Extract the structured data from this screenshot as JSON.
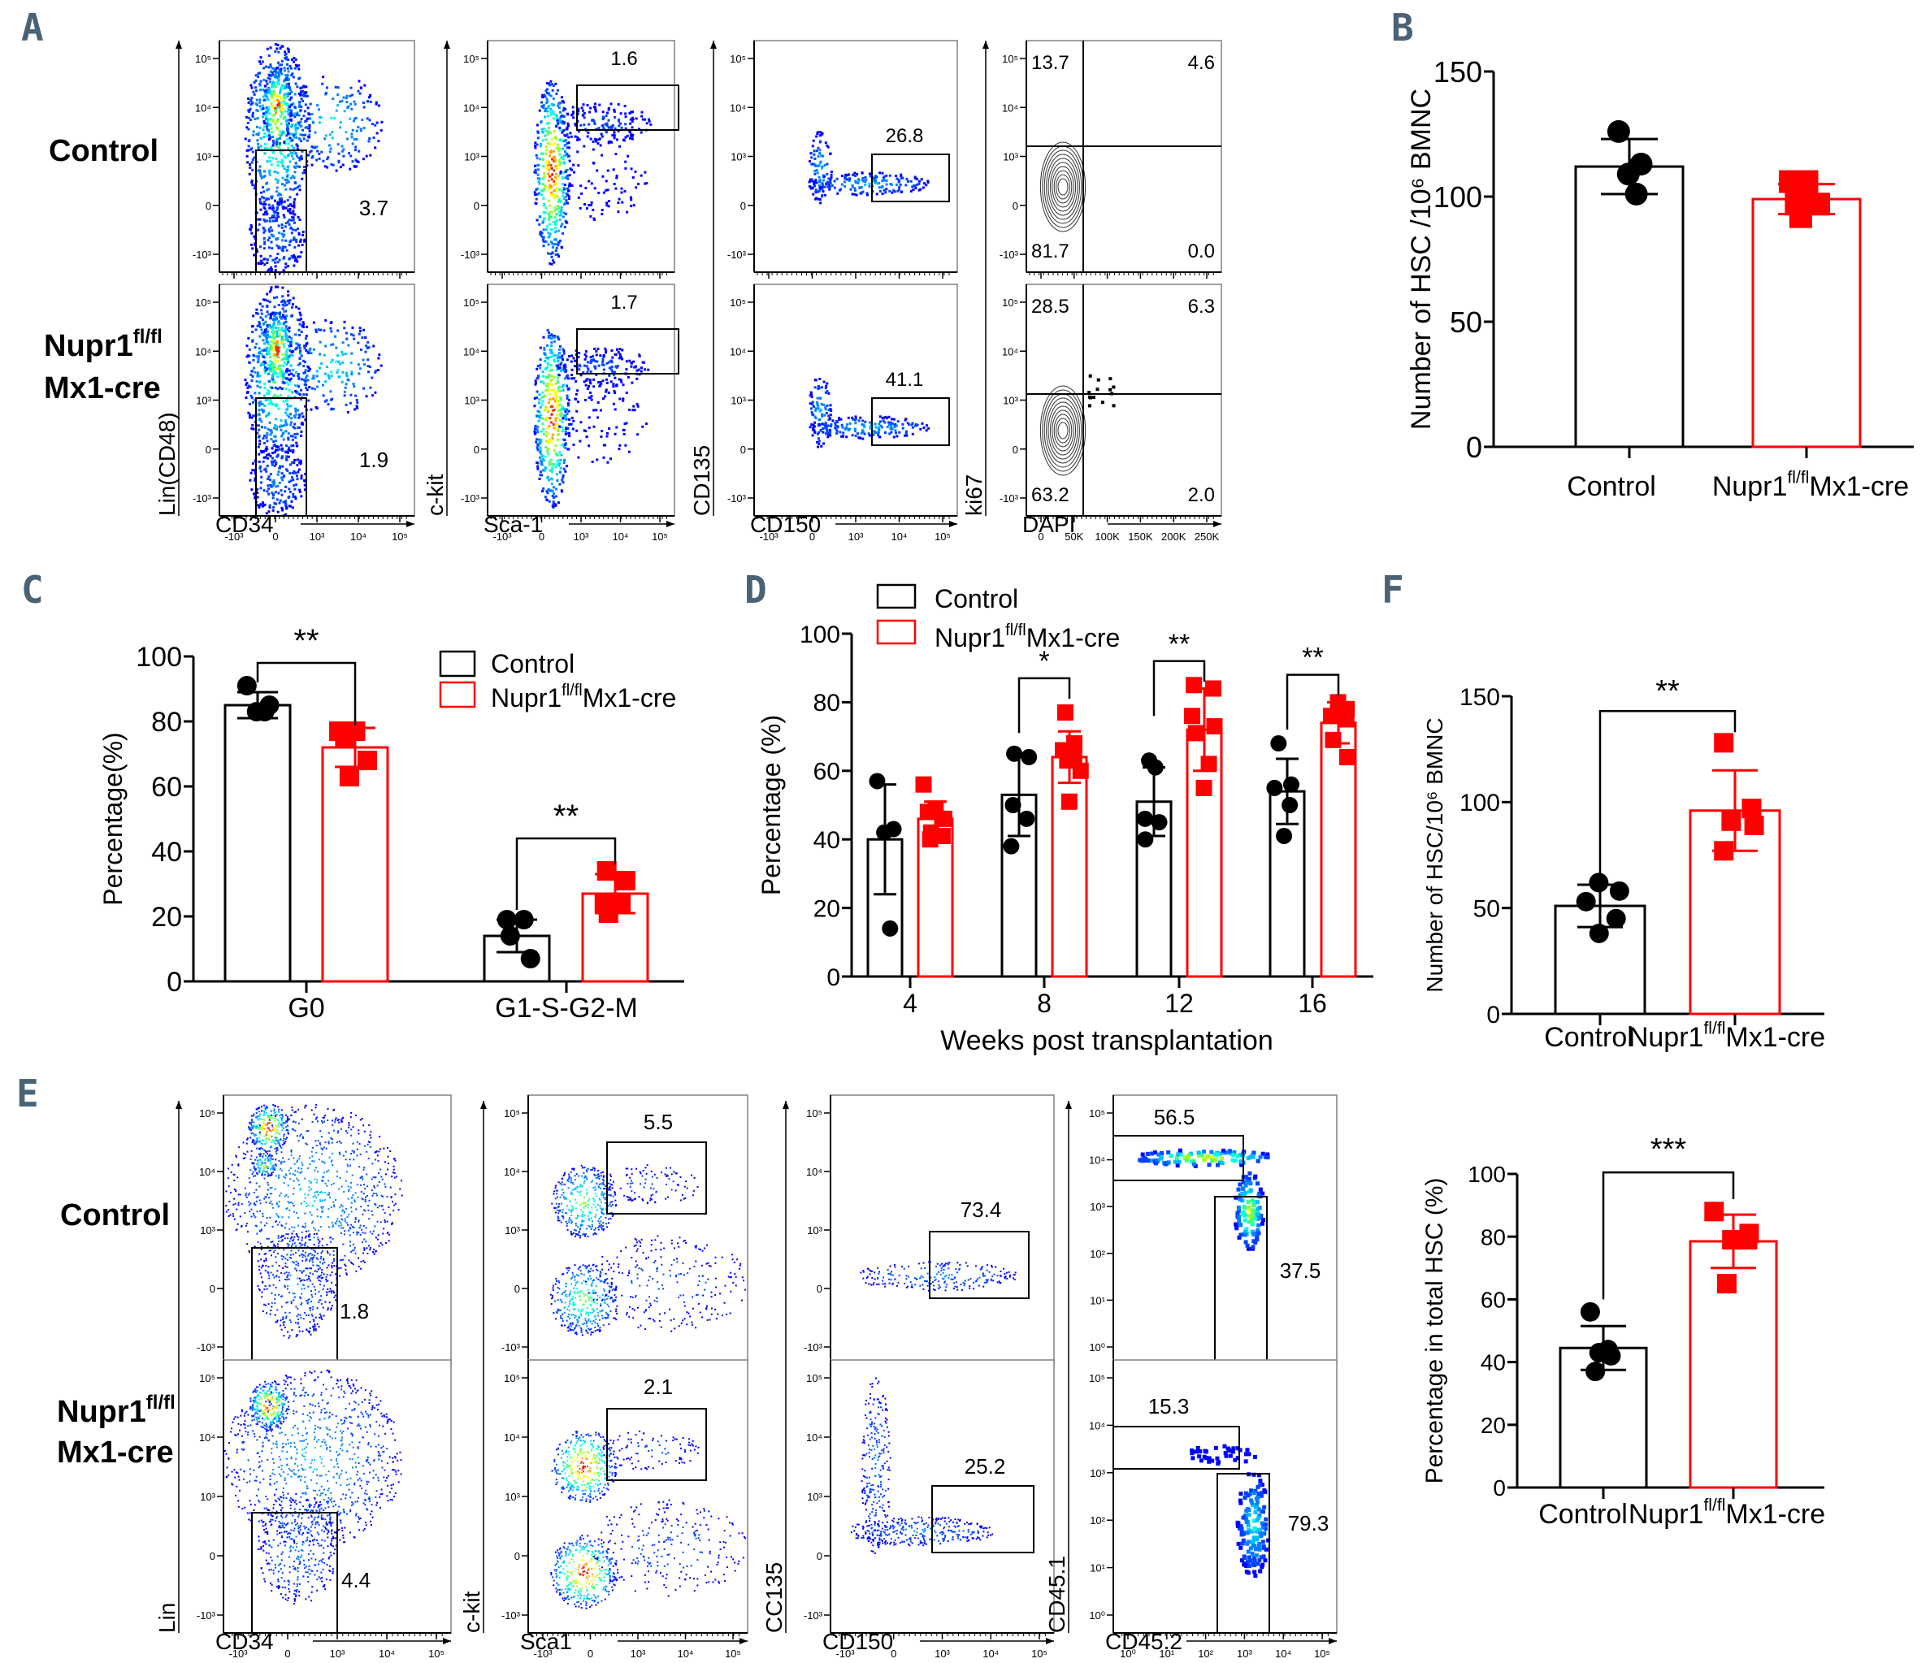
{
  "panel_labels": {
    "A": "A",
    "B": "B",
    "C": "C",
    "D": "D",
    "E": "E",
    "F": "F"
  },
  "groups": {
    "control": "Control",
    "nupr1_base": "Nupr1",
    "nupr1_sup": "fl/fl",
    "nupr1_suffix": "Mx1-cre",
    "nupr1_row_line2": "Mx1-cre"
  },
  "colors": {
    "control": "#000000",
    "nupr1": "#ff0000",
    "panel_label": "#4a6275"
  },
  "flow_A": {
    "plots": [
      {
        "xlabel": "CD34",
        "ylabel": "Lin(CD48)",
        "xticks": [
          "-10³",
          "0",
          "10³",
          "10⁴",
          "10⁵"
        ],
        "yticks": [
          "10⁵",
          "10⁴",
          "10³",
          "0",
          "-10³"
        ],
        "gates": [
          "3.7",
          "1.9"
        ]
      },
      {
        "xlabel": "Sca-1",
        "ylabel": "c-kit",
        "xticks": [
          "-10³",
          "0",
          "10³",
          "10⁴",
          "10⁵"
        ],
        "yticks": [
          "10⁵",
          "10⁴",
          "10³",
          "0",
          "-10³"
        ],
        "gates": [
          "1.6",
          "1.7"
        ]
      },
      {
        "xlabel": "CD150",
        "ylabel": "CD135",
        "xticks": [
          "-10³",
          "0",
          "10³",
          "10⁴",
          "10⁵"
        ],
        "yticks": [
          "10⁵",
          "10⁴",
          "10³",
          "0",
          "-10³"
        ],
        "gates": [
          "26.8",
          "41.1"
        ]
      },
      {
        "xlabel": "DAPI",
        "ylabel": "ki67",
        "xticks": [
          "0",
          "50K",
          "100K",
          "150K",
          "200K",
          "250K"
        ],
        "yticks": [
          "10⁵",
          "10⁴",
          "10³",
          "0",
          "-10³"
        ],
        "quadrants": [
          [
            "13.7",
            "4.6",
            "81.7",
            "0.0"
          ],
          [
            "28.5",
            "6.3",
            "63.2",
            "2.0"
          ]
        ]
      }
    ]
  },
  "flow_E": {
    "plots": [
      {
        "xlabel": "CD34",
        "ylabel": "Lin",
        "xticks": [
          "-10³",
          "0",
          "10³",
          "10⁴",
          "10⁵"
        ],
        "yticks": [
          "10⁵",
          "10⁴",
          "10³",
          "0",
          "-10³"
        ],
        "gates": [
          "1.8",
          "4.4"
        ]
      },
      {
        "xlabel": "Sca1",
        "ylabel": "c-kit",
        "xticks": [
          "-10³",
          "0",
          "10³",
          "10⁴",
          "10⁵"
        ],
        "yticks": [
          "10⁵",
          "10⁴",
          "10³",
          "0",
          "-10³"
        ],
        "gates": [
          "5.5",
          "2.1"
        ]
      },
      {
        "xlabel": "CD150",
        "ylabel": "CC135",
        "xticks": [
          "-10³",
          "0",
          "10³",
          "10⁴",
          "10⁵"
        ],
        "yticks": [
          "10⁵",
          "10⁴",
          "10³",
          "0",
          "-10³"
        ],
        "gates": [
          "73.4",
          "25.2"
        ]
      },
      {
        "xlabel": "CD45.2",
        "ylabel": "CD45.1",
        "xticks": [
          "10⁰",
          "10¹",
          "10²",
          "10³",
          "10⁴",
          "10⁵"
        ],
        "yticks": [
          "10⁵",
          "10⁴",
          "10³",
          "10²",
          "10¹",
          "10⁰"
        ],
        "gates": [
          [
            "56.5",
            "37.5"
          ],
          [
            "15.3",
            "79.3"
          ]
        ]
      }
    ]
  },
  "chart_data": [
    {
      "id": "B",
      "type": "bar",
      "title": "",
      "ylabel": "Number of HSC /10⁶ BMNC",
      "xlabel": "",
      "categories": [
        "Control",
        "Nupr1fl/flMx1-cre"
      ],
      "ylim": [
        0,
        150
      ],
      "yticks": [
        0,
        50,
        100,
        150
      ],
      "series": [
        {
          "name": "Control",
          "mean": 112,
          "sd": 11,
          "points": [
            126,
            113,
            109,
            101
          ]
        },
        {
          "name": "Nupr1fl/flMx1-cre",
          "mean": 99,
          "sd": 6,
          "points": [
            106,
            106,
            97,
            97,
            92
          ]
        }
      ]
    },
    {
      "id": "C",
      "type": "bar",
      "ylabel": "Percentage(%)",
      "xlabel": "",
      "categories": [
        "G0",
        "G1-S-G2-M"
      ],
      "ylim": [
        0,
        100
      ],
      "yticks": [
        0,
        20,
        40,
        60,
        80,
        100
      ],
      "legend": [
        "Control",
        "Nupr1fl/flMx1-cre"
      ],
      "legend_position": "top-right",
      "series": [
        {
          "name": "Control",
          "means": [
            85,
            14
          ],
          "sds": [
            4,
            5
          ],
          "points": [
            [
              91,
              85,
              83,
              83
            ],
            [
              19,
              19,
              14,
              7
            ]
          ]
        },
        {
          "name": "Nupr1fl/flMx1-cre",
          "means": [
            72,
            27
          ],
          "sds": [
            6,
            6
          ],
          "points": [
            [
              77,
              77,
              75,
              68,
              63
            ],
            [
              34,
              31,
              24,
              24,
              21
            ]
          ]
        }
      ],
      "significance": [
        "**",
        "**"
      ]
    },
    {
      "id": "D",
      "type": "bar",
      "ylabel": "Percentage (%)",
      "xlabel": "Weeks post transplantation",
      "categories": [
        "4",
        "8",
        "12",
        "16"
      ],
      "ylim": [
        0,
        100
      ],
      "yticks": [
        0,
        20,
        40,
        60,
        80,
        100
      ],
      "legend": [
        "Control",
        "Nupr1fl/flMx1-cre"
      ],
      "legend_position": "top-left",
      "series": [
        {
          "name": "Control",
          "means": [
            40,
            53,
            51,
            54
          ],
          "sds": [
            16,
            12,
            10,
            9.5
          ],
          "points": [
            [
              57,
              43,
              42,
              14
            ],
            [
              65,
              64,
              50,
              46,
              38
            ],
            [
              63,
              61,
              46,
              45,
              40
            ],
            [
              68,
              56,
              55,
              50,
              41
            ]
          ]
        },
        {
          "name": "Nupr1fl/flMx1-cre",
          "means": [
            46,
            64,
            72,
            74
          ],
          "sds": [
            5,
            7.5,
            12,
            6
          ],
          "points": [
            [
              56,
              49,
              48,
              46,
              42,
              41,
              40
            ],
            [
              77,
              68,
              66,
              64,
              63,
              60,
              51
            ],
            [
              85,
              84,
              76,
              73,
              71,
              62,
              55
            ],
            [
              80,
              78,
              76,
              75,
              69,
              64
            ]
          ]
        }
      ],
      "significance": [
        "",
        "*",
        "**",
        "**"
      ]
    },
    {
      "id": "F_top",
      "type": "bar",
      "ylabel": "Number of HSC/10⁶ BMNC",
      "xlabel": "",
      "categories": [
        "Control",
        "Nupr1fl/flMx1-cre"
      ],
      "ylim": [
        0,
        150
      ],
      "yticks": [
        0,
        50,
        100,
        150
      ],
      "series": [
        {
          "name": "Control",
          "mean": 51,
          "sd": 10,
          "points": [
            62,
            58,
            53,
            45,
            38
          ]
        },
        {
          "name": "Nupr1fl/flMx1-cre",
          "mean": 96,
          "sd": 19,
          "points": [
            128,
            97,
            91,
            89,
            77
          ]
        }
      ],
      "significance": "**"
    },
    {
      "id": "F_bottom",
      "type": "bar",
      "ylabel": "Percentage in total HSC (%)",
      "xlabel": "",
      "categories": [
        "Control",
        "Nupr1fl/flMx1-cre"
      ],
      "ylim": [
        0,
        100
      ],
      "yticks": [
        0,
        20,
        40,
        60,
        80,
        100
      ],
      "series": [
        {
          "name": "Control",
          "mean": 44.5,
          "sd": 7,
          "points": [
            56,
            44,
            43,
            42,
            37
          ]
        },
        {
          "name": "Nupr1fl/flMx1-cre",
          "mean": 78.5,
          "sd": 8.5,
          "points": [
            88,
            81,
            79,
            79,
            65
          ]
        }
      ],
      "significance": "***"
    }
  ]
}
